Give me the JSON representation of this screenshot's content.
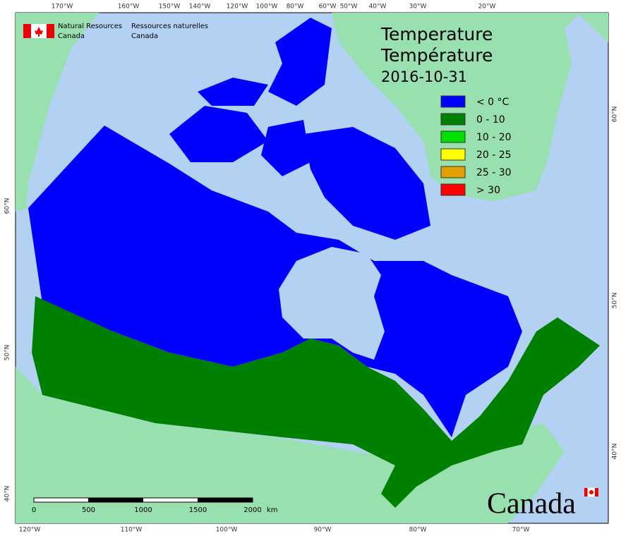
{
  "header": {
    "agency_en": "Natural Resources",
    "country_en": "Canada",
    "agency_fr": "Ressources naturelles",
    "country_fr": "Canada"
  },
  "title": {
    "en": "Temperature",
    "fr": "Température",
    "date": "2016-10-31"
  },
  "legend": [
    {
      "label": "< 0 °C",
      "color": "#0000ff"
    },
    {
      "label": "0 - 10",
      "color": "#008000"
    },
    {
      "label": "10 - 20",
      "color": "#00e000"
    },
    {
      "label": "20 - 25",
      "color": "#ffff00"
    },
    {
      "label": "25 - 30",
      "color": "#e0a000"
    },
    {
      "label": "> 30",
      "color": "#ff0000"
    }
  ],
  "top_labels": [
    "170°W",
    "160°W",
    "150°W",
    "140°W",
    "120°W",
    "100°W",
    "80°W",
    "60°W",
    "50°W",
    "40°W",
    "30°W",
    "20°W"
  ],
  "bottom_labels": [
    "120°W",
    "110°W",
    "100°W",
    "90°W",
    "80°W",
    "70°W"
  ],
  "left_labels": [
    "60°N",
    "50°N",
    "40°N"
  ],
  "right_labels": [
    "60°N",
    "50°N",
    "40°N"
  ],
  "scale_bar": {
    "ticks": [
      "0",
      "500",
      "1000",
      "1500",
      "2000"
    ],
    "unit": "km"
  },
  "wordmark": "Canada"
}
